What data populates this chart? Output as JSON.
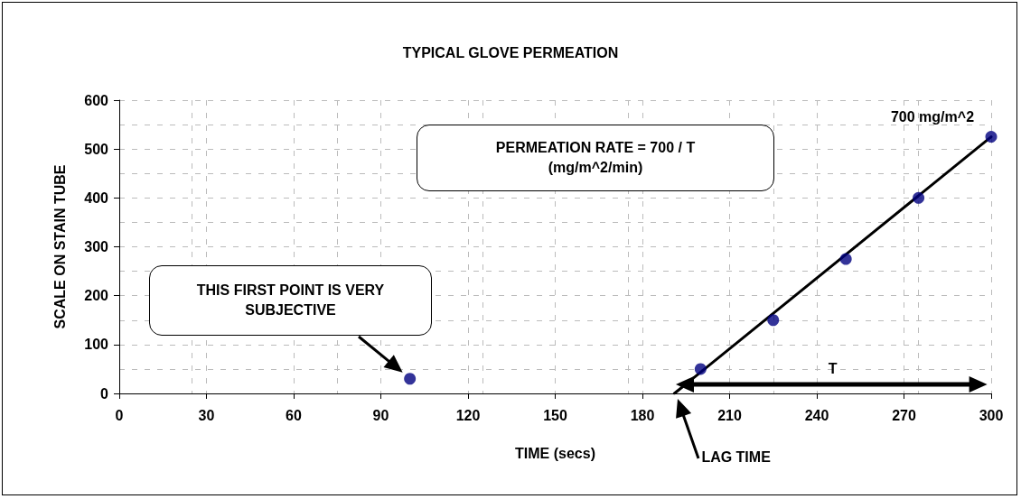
{
  "chart_data": {
    "type": "scatter",
    "title": "TYPICAL GLOVE PERMEATION",
    "xlabel": "TIME (secs)",
    "ylabel": "SCALE ON STAIN TUBE",
    "series": [
      {
        "color": "#000080",
        "x": [
          100,
          200,
          225,
          250,
          275,
          300
        ],
        "values": [
          30,
          50,
          150,
          275,
          400,
          525
        ]
      },
      {
        "type": "line",
        "color": "#000000",
        "marker": "none",
        "x": [
          191,
          300
        ],
        "values": [
          0,
          525
        ]
      }
    ],
    "xlim": [
      0,
      300
    ],
    "xticks": [
      0,
      30,
      60,
      90,
      120,
      150,
      180,
      210,
      240,
      270,
      300
    ],
    "ylim": [
      0,
      600
    ],
    "yticks": [
      0,
      100,
      200,
      300,
      400,
      500,
      600
    ],
    "grid": true,
    "marker": "circle",
    "line_style": "solid",
    "annotations": [
      "PERMEATION RATE = 700 / T\n(mg/m^2/min)",
      "THIS FIRST POINT IS VERY\nSUBJECTIVE",
      {
        "text": "700 mg/m^2",
        "x": 300,
        "y": 525
      },
      "T",
      "LAG TIME"
    ]
  }
}
